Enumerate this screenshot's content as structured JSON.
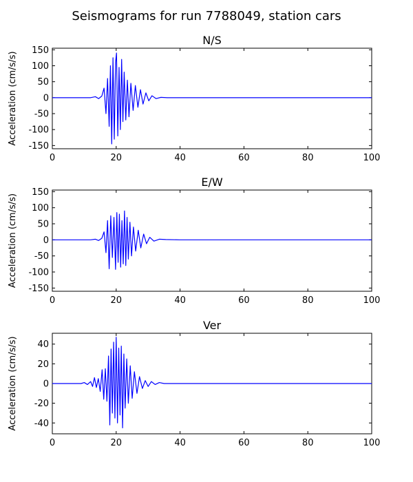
{
  "figure": {
    "title": "Seismograms for run 7788049, station cars"
  },
  "chart_data": [
    {
      "type": "line",
      "title": "N/S",
      "xlabel": "",
      "ylabel": "Acceleration (cm/s/s)",
      "xlim": [
        0,
        100
      ],
      "ylim": [
        -160,
        155
      ],
      "xticks": [
        0,
        20,
        40,
        60,
        80,
        100
      ],
      "yticks": [
        150,
        100,
        50,
        0,
        -50,
        -100,
        -150
      ],
      "grid": false,
      "color": "#0000ff",
      "series": [
        {
          "x": [
            0,
            12,
            13.5,
            14.5,
            15.5,
            16.2,
            16.8,
            17.3,
            17.8,
            18.2,
            18.6,
            19.0,
            19.4,
            19.8,
            20.1,
            20.5,
            20.9,
            21.3,
            21.7,
            22.1,
            22.5,
            23.0,
            23.5,
            24.0,
            24.6,
            25.3,
            26.0,
            26.8,
            27.6,
            28.4,
            29.3,
            30.2,
            31.2,
            32.5,
            34,
            36,
            40,
            100
          ],
          "y": [
            0,
            0,
            3,
            -3,
            5,
            30,
            -50,
            60,
            -90,
            100,
            -145,
            125,
            -130,
            110,
            140,
            -120,
            95,
            -100,
            120,
            -75,
            80,
            -70,
            55,
            -60,
            45,
            -40,
            38,
            -30,
            25,
            -20,
            15,
            -10,
            6,
            -3,
            1,
            0,
            0,
            0
          ]
        }
      ]
    },
    {
      "type": "line",
      "title": "E/W",
      "xlabel": "",
      "ylabel": "Acceleration (cm/s/s)",
      "xlim": [
        0,
        100
      ],
      "ylim": [
        -160,
        155
      ],
      "xticks": [
        0,
        20,
        40,
        60,
        80,
        100
      ],
      "yticks": [
        150,
        100,
        50,
        0,
        -50,
        -100,
        -150
      ],
      "grid": false,
      "color": "#0000ff",
      "series": [
        {
          "x": [
            0,
            12,
            13.5,
            14.5,
            15.5,
            16.2,
            16.8,
            17.3,
            17.8,
            18.3,
            18.8,
            19.3,
            19.8,
            20.2,
            20.6,
            21.0,
            21.4,
            21.8,
            22.2,
            22.6,
            23.0,
            23.4,
            23.8,
            24.3,
            24.8,
            25.4,
            26.1,
            26.9,
            27.7,
            28.6,
            29.5,
            30.5,
            31.8,
            33.5,
            35.5,
            40,
            100
          ],
          "y": [
            0,
            0,
            2,
            -2,
            5,
            25,
            -40,
            60,
            -90,
            75,
            -55,
            70,
            -92,
            85,
            -70,
            80,
            -85,
            60,
            -75,
            90,
            -80,
            70,
            -60,
            55,
            -50,
            40,
            -35,
            30,
            -25,
            18,
            -12,
            8,
            -4,
            2,
            1,
            0,
            0
          ]
        }
      ]
    },
    {
      "type": "line",
      "title": "Ver",
      "xlabel": "",
      "ylabel": "Acceleration (cm/s/s)",
      "xlim": [
        0,
        100
      ],
      "ylim": [
        -51,
        51
      ],
      "xticks": [
        0,
        20,
        40,
        60,
        80,
        100
      ],
      "yticks": [
        40,
        20,
        0,
        -20,
        -40
      ],
      "grid": false,
      "color": "#0000ff",
      "series": [
        {
          "x": [
            0,
            9,
            10,
            11,
            12,
            12.6,
            13.2,
            13.8,
            14.4,
            15.0,
            15.6,
            16.1,
            16.6,
            17.1,
            17.6,
            18.0,
            18.4,
            18.8,
            19.2,
            19.6,
            20.0,
            20.4,
            20.8,
            21.2,
            21.6,
            22.0,
            22.4,
            22.8,
            23.3,
            23.8,
            24.4,
            25.0,
            25.7,
            26.5,
            27.3,
            28.2,
            29.1,
            30.0,
            31.0,
            32.2,
            33.5,
            35,
            37,
            40,
            100
          ],
          "y": [
            0,
            0,
            1,
            -1,
            2,
            -3,
            6,
            -4,
            5,
            -8,
            14,
            -16,
            15,
            -18,
            28,
            -42,
            35,
            -30,
            42,
            -35,
            47,
            -40,
            36,
            -32,
            38,
            -45,
            30,
            -25,
            25,
            -20,
            18,
            -15,
            12,
            -10,
            7,
            -5,
            3,
            -3,
            2,
            -1,
            1,
            0,
            0,
            0,
            0
          ]
        }
      ]
    }
  ]
}
